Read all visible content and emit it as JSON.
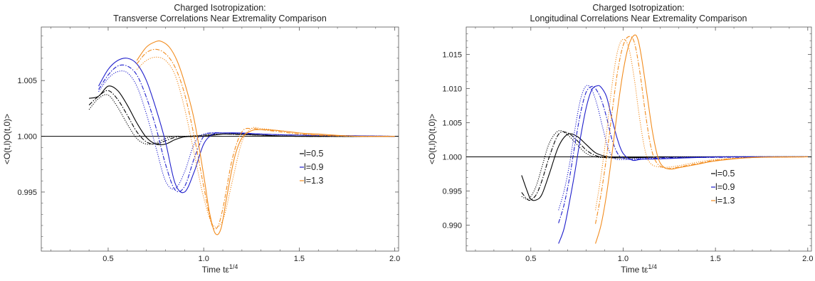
{
  "chart_data": [
    {
      "type": "line",
      "title": "Charged Isotropization:",
      "subtitle": "Transverse Correlations Near Extremality Comparison",
      "xlabel_main": "Time t",
      "xlabel_sup": "1/4",
      "ylabel": "<O(t,l)O(t,0)>",
      "xlim": [
        0.15,
        2.02
      ],
      "ylim": [
        0.9897,
        1.0098
      ],
      "xticks": [
        "0.5",
        "1.0",
        "1.5",
        "2.0"
      ],
      "xtick_values": [
        0.5,
        1.0,
        1.5,
        2.0
      ],
      "yticks": [
        "0.995",
        "1.000",
        "1.005"
      ],
      "ytick_values": [
        0.995,
        1.0,
        1.005
      ],
      "baseline": 1.0,
      "grid": false,
      "legend_position": "center-right",
      "legend": [
        "l=0.5",
        "l=0.9",
        "l=1.3"
      ],
      "series": [
        {
          "name": "l=0.5",
          "color": "#000000",
          "dash": "solid",
          "x": [
            0.4,
            0.45,
            0.5,
            0.55,
            0.6,
            0.65,
            0.7,
            0.75,
            0.8,
            0.85,
            0.9,
            0.95,
            1.0,
            1.05,
            1.1,
            1.2,
            1.3,
            1.5,
            2.0
          ],
          "y": [
            1.0034,
            1.0036,
            1.0045,
            1.0041,
            1.0028,
            1.0012,
            0.9999,
            0.9993,
            0.9993,
            0.9997,
            0.99995,
            1.0,
            1.0,
            1.0001,
            1.0002,
            1.0002,
            1.0001,
            1.0,
            1.0
          ]
        },
        {
          "name": "l=0.5",
          "color": "#000000",
          "dash": "dashdot",
          "x": [
            0.4,
            0.45,
            0.5,
            0.55,
            0.6,
            0.65,
            0.7,
            0.75,
            0.8,
            0.85,
            0.9,
            0.95,
            1.0,
            1.1,
            1.3,
            1.5,
            2.0
          ],
          "y": [
            1.0028,
            1.0036,
            1.0041,
            1.0033,
            1.0019,
            1.0004,
            0.9995,
            0.9993,
            0.9996,
            0.9999,
            1.0,
            1.0,
            1.0001,
            1.0002,
            1.0001,
            1.0,
            1.0
          ]
        },
        {
          "name": "l=0.5",
          "color": "#000000",
          "dash": "dotted",
          "x": [
            0.4,
            0.45,
            0.5,
            0.55,
            0.6,
            0.65,
            0.7,
            0.75,
            0.8,
            0.85,
            0.9,
            1.0,
            1.1,
            1.3,
            1.5,
            2.0
          ],
          "y": [
            1.0024,
            1.0034,
            1.0037,
            1.0026,
            1.0011,
            0.9998,
            0.9993,
            0.9994,
            0.9998,
            1.0,
            1.0,
            1.0001,
            1.0002,
            1.0001,
            1.0,
            1.0
          ]
        },
        {
          "name": "l=0.9",
          "color": "#1f1fcc",
          "dash": "solid",
          "x": [
            0.45,
            0.5,
            0.55,
            0.6,
            0.65,
            0.7,
            0.75,
            0.8,
            0.85,
            0.9,
            0.95,
            1.0,
            1.05,
            1.1,
            1.2,
            1.3,
            1.5,
            2.0
          ],
          "y": [
            1.0045,
            1.006,
            1.0068,
            1.007,
            1.0065,
            1.005,
            1.0025,
            0.9995,
            0.9958,
            0.995,
            0.9968,
            0.9993,
            1.0002,
            1.0003,
            1.0003,
            1.0002,
            1.0001,
            1.0
          ]
        },
        {
          "name": "l=0.9",
          "color": "#1f1fcc",
          "dash": "dashdot",
          "x": [
            0.45,
            0.5,
            0.55,
            0.6,
            0.65,
            0.7,
            0.75,
            0.8,
            0.85,
            0.9,
            0.95,
            1.0,
            1.05,
            1.1,
            1.3,
            1.5,
            2.0
          ],
          "y": [
            1.0042,
            1.0055,
            1.0063,
            1.0063,
            1.0055,
            1.0035,
            1.0008,
            0.9975,
            0.9952,
            0.9955,
            0.998,
            1.0,
            1.0003,
            1.0003,
            1.0002,
            1.0001,
            1.0
          ]
        },
        {
          "name": "l=0.9",
          "color": "#1f1fcc",
          "dash": "dotted",
          "x": [
            0.45,
            0.5,
            0.55,
            0.6,
            0.65,
            0.7,
            0.75,
            0.8,
            0.85,
            0.9,
            0.95,
            1.0,
            1.1,
            1.3,
            1.5,
            2.0
          ],
          "y": [
            1.004,
            1.0052,
            1.0058,
            1.0057,
            1.0045,
            1.002,
            0.999,
            0.996,
            0.9953,
            0.9968,
            0.9993,
            1.0002,
            1.0003,
            1.0002,
            1.0001,
            1.0
          ]
        },
        {
          "name": "l=1.3",
          "color": "#f28c1e",
          "dash": "solid",
          "x": [
            0.65,
            0.7,
            0.75,
            0.78,
            0.82,
            0.86,
            0.9,
            0.95,
            1.0,
            1.03,
            1.06,
            1.09,
            1.12,
            1.16,
            1.2,
            1.25,
            1.3,
            1.4,
            1.5,
            1.6,
            1.8,
            2.0
          ],
          "y": [
            1.0068,
            1.008,
            1.0085,
            1.0085,
            1.008,
            1.0068,
            1.0048,
            1.0015,
            0.9965,
            0.9932,
            0.9913,
            0.9917,
            0.9945,
            0.998,
            0.99985,
            1.0005,
            1.0006,
            1.0005,
            1.0003,
            1.0002,
            1.0,
            1.0
          ]
        },
        {
          "name": "l=1.3",
          "color": "#f28c1e",
          "dash": "dashdot",
          "x": [
            0.65,
            0.7,
            0.75,
            0.8,
            0.85,
            0.9,
            0.95,
            1.0,
            1.04,
            1.07,
            1.1,
            1.15,
            1.2,
            1.25,
            1.3,
            1.4,
            1.5,
            1.6,
            1.8,
            2.0
          ],
          "y": [
            1.0065,
            1.0075,
            1.0078,
            1.0074,
            1.0062,
            1.0038,
            1.0,
            0.9955,
            0.9922,
            0.9918,
            0.9935,
            0.998,
            1.0004,
            1.0007,
            1.0006,
            1.0004,
            1.0002,
            1.0001,
            1.0,
            1.0
          ]
        },
        {
          "name": "l=1.3",
          "color": "#f28c1e",
          "dash": "dotted",
          "x": [
            0.65,
            0.7,
            0.75,
            0.8,
            0.85,
            0.9,
            0.95,
            1.0,
            1.05,
            1.1,
            1.15,
            1.2,
            1.25,
            1.3,
            1.4,
            1.5,
            1.6,
            1.8,
            2.0
          ],
          "y": [
            1.006,
            1.0068,
            1.0071,
            1.0068,
            1.0055,
            1.0025,
            0.9985,
            0.9945,
            0.992,
            0.9925,
            0.996,
            0.9995,
            1.0007,
            1.0007,
            1.0005,
            1.0003,
            1.0001,
            1.0,
            1.0
          ]
        }
      ]
    },
    {
      "type": "line",
      "title": "Charged Isotropization:",
      "subtitle": "Longitudinal Correlations Near Extremality Comparison",
      "xlabel_main": "Time t",
      "xlabel_sup": "1/4",
      "ylabel": "<O(t,l)O(t,0)>",
      "xlim": [
        0.15,
        2.02
      ],
      "ylim": [
        0.9862,
        1.019
      ],
      "xticks": [
        "0.5",
        "1.0",
        "1.5",
        "2.0"
      ],
      "xtick_values": [
        0.5,
        1.0,
        1.5,
        2.0
      ],
      "yticks": [
        "0.990",
        "0.995",
        "1.000",
        "1.005",
        "1.010",
        "1.015"
      ],
      "ytick_values": [
        0.99,
        0.995,
        1.0,
        1.005,
        1.01,
        1.015
      ],
      "baseline": 1.0,
      "grid": false,
      "legend_position": "lower-right",
      "legend": [
        "l=0.5",
        "l=0.9",
        "l=1.3"
      ],
      "series": [
        {
          "name": "l=0.5",
          "color": "#000000",
          "dash": "solid",
          "x": [
            0.45,
            0.48,
            0.5,
            0.53,
            0.56,
            0.6,
            0.65,
            0.7,
            0.75,
            0.8,
            0.85,
            0.9,
            0.95,
            1.0,
            1.1,
            1.2,
            1.5,
            2.0
          ],
          "y": [
            0.9973,
            0.995,
            0.9938,
            0.9937,
            0.9945,
            0.9975,
            1.0015,
            1.0033,
            1.003,
            1.0018,
            1.0006,
            1.0001,
            0.9999,
            0.99985,
            0.9999,
            1.0,
            1.0,
            1.0
          ]
        },
        {
          "name": "l=0.5",
          "color": "#000000",
          "dash": "dashdot",
          "x": [
            0.45,
            0.48,
            0.5,
            0.53,
            0.56,
            0.6,
            0.65,
            0.7,
            0.75,
            0.8,
            0.85,
            0.9,
            1.0,
            1.1,
            1.5,
            2.0
          ],
          "y": [
            0.9948,
            0.9938,
            0.9937,
            0.9945,
            0.9965,
            1.0,
            1.0033,
            1.0035,
            1.0024,
            1.001,
            1.0002,
            0.9999,
            0.99985,
            0.9999,
            1.0,
            1.0
          ]
        },
        {
          "name": "l=0.5",
          "color": "#000000",
          "dash": "dotted",
          "x": [
            0.45,
            0.48,
            0.5,
            0.53,
            0.56,
            0.6,
            0.65,
            0.7,
            0.75,
            0.8,
            0.85,
            0.9,
            1.0,
            1.5,
            2.0
          ],
          "y": [
            0.9942,
            0.9938,
            0.9942,
            0.9958,
            0.9985,
            1.002,
            1.0038,
            1.0032,
            1.0018,
            1.0005,
            1.0,
            0.9999,
            0.99985,
            1.0,
            1.0
          ]
        },
        {
          "name": "l=0.9",
          "color": "#1f1fcc",
          "dash": "solid",
          "x": [
            0.65,
            0.68,
            0.71,
            0.74,
            0.77,
            0.8,
            0.83,
            0.86,
            0.88,
            0.91,
            0.94,
            0.97,
            1.0,
            1.05,
            1.1,
            1.2,
            1.4,
            1.6,
            2.0
          ],
          "y": [
            0.9873,
            0.9895,
            0.9935,
            0.998,
            1.003,
            1.0072,
            1.0098,
            1.0104,
            1.0102,
            1.0088,
            1.0055,
            1.0025,
            1.0005,
            0.9995,
            0.99965,
            0.9997,
            0.9999,
            1.0,
            1.0
          ]
        },
        {
          "name": "l=0.9",
          "color": "#1f1fcc",
          "dash": "dashdot",
          "x": [
            0.65,
            0.68,
            0.71,
            0.74,
            0.77,
            0.8,
            0.83,
            0.85,
            0.88,
            0.91,
            0.94,
            0.97,
            1.0,
            1.05,
            1.1,
            1.2,
            1.4,
            2.0
          ],
          "y": [
            0.9903,
            0.993,
            0.997,
            1.002,
            1.0065,
            1.0095,
            1.0103,
            1.01,
            1.0085,
            1.0058,
            1.0025,
            1.0005,
            0.9998,
            0.9996,
            0.9997,
            0.9998,
            0.9999,
            1.0
          ]
        },
        {
          "name": "l=0.9",
          "color": "#1f1fcc",
          "dash": "dotted",
          "x": [
            0.65,
            0.68,
            0.71,
            0.74,
            0.77,
            0.8,
            0.83,
            0.86,
            0.89,
            0.92,
            0.95,
            1.0,
            1.05,
            1.1,
            1.2,
            1.4,
            2.0
          ],
          "y": [
            0.9922,
            0.995,
            0.999,
            1.0042,
            1.0085,
            1.0104,
            1.0098,
            1.0075,
            1.0042,
            1.0012,
            0.9998,
            0.9996,
            0.9997,
            0.9998,
            0.9999,
            1.0,
            1.0
          ]
        },
        {
          "name": "l=1.3",
          "color": "#f28c1e",
          "dash": "solid",
          "x": [
            0.85,
            0.88,
            0.91,
            0.94,
            0.97,
            1.0,
            1.03,
            1.06,
            1.08,
            1.1,
            1.13,
            1.16,
            1.19,
            1.22,
            1.26,
            1.3,
            1.4,
            1.5,
            1.7,
            2.0
          ],
          "y": [
            0.9873,
            0.99,
            0.9945,
            1.0005,
            1.007,
            1.0125,
            1.0163,
            1.0178,
            1.0172,
            1.0145,
            1.009,
            1.0035,
            0.9998,
            0.9985,
            0.9982,
            0.9984,
            0.9989,
            0.9994,
            0.9999,
            1.0
          ]
        },
        {
          "name": "l=1.3",
          "color": "#f28c1e",
          "dash": "dashdot",
          "x": [
            0.85,
            0.88,
            0.91,
            0.94,
            0.97,
            1.0,
            1.03,
            1.06,
            1.09,
            1.12,
            1.15,
            1.18,
            1.22,
            1.26,
            1.3,
            1.4,
            1.5,
            1.7,
            2.0
          ],
          "y": [
            0.9902,
            0.9945,
            1.0,
            1.0065,
            1.0125,
            1.0163,
            1.0176,
            1.0168,
            1.0125,
            1.0065,
            1.0015,
            0.9992,
            0.9984,
            0.9983,
            0.9985,
            0.999,
            0.9995,
            0.9999,
            1.0
          ]
        },
        {
          "name": "l=1.3",
          "color": "#f28c1e",
          "dash": "dotted",
          "x": [
            0.85,
            0.88,
            0.91,
            0.94,
            0.97,
            1.0,
            1.03,
            1.06,
            1.09,
            1.12,
            1.15,
            1.2,
            1.25,
            1.3,
            1.4,
            1.5,
            1.7,
            2.0
          ],
          "y": [
            0.9922,
            0.9972,
            1.0035,
            1.0105,
            1.0155,
            1.0172,
            1.016,
            1.0115,
            1.0055,
            1.0008,
            0.999,
            0.9985,
            0.9985,
            0.9987,
            0.9992,
            0.9996,
            0.9999,
            1.0
          ]
        }
      ]
    }
  ]
}
